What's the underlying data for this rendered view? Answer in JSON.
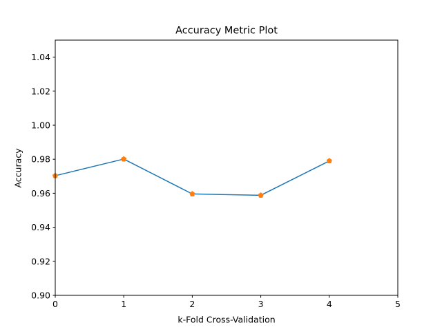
{
  "chart_data": {
    "type": "line",
    "title": "Accuracy Metric Plot",
    "xlabel": "k-Fold Cross-Validation",
    "ylabel": "Accuracy",
    "xlim": [
      0,
      5
    ],
    "ylim": [
      0.9,
      1.05
    ],
    "xticks": [
      "0",
      "1",
      "2",
      "3",
      "4",
      "5"
    ],
    "yticks": [
      "0.90",
      "0.92",
      "0.94",
      "0.96",
      "0.98",
      "1.00",
      "1.02",
      "1.04"
    ],
    "grid": false,
    "series": [
      {
        "x": [
          0,
          1,
          2,
          3,
          4
        ],
        "values": [
          0.9703,
          0.9801,
          0.9596,
          0.9588,
          0.979
        ],
        "line_color": "#1f77b4",
        "marker_color": "#ff7f0e",
        "marker": "pentagon"
      }
    ]
  }
}
